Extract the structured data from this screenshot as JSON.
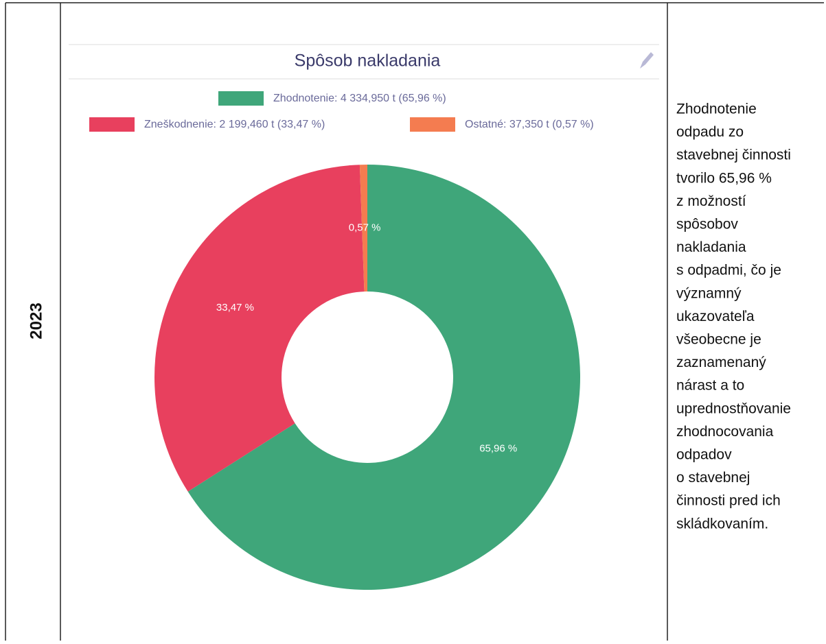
{
  "table": {
    "year": "2023",
    "text_lines": [
      "Zhodnotenie",
      "odpadu zo",
      "stavebnej činnosti",
      "tvorilo  65,96 %",
      "z možností",
      "spôsobov",
      "nakladania",
      "s odpadmi, čo je",
      "významný",
      "ukazovateľa",
      "všeobecne je",
      "zaznamenaný",
      "nárast  a to",
      "uprednostňovanie",
      "zhodnocovania",
      "odpadov",
      "o stavebnej",
      "činnosti pred ich",
      "skládkovaním."
    ]
  },
  "chart_data": {
    "type": "donut",
    "title": "Spôsob nakladania",
    "categories": [
      "Zhodnotenie: 4 334,950 t (65,96 %)",
      "Zneškodnenie: 2 199,460 t (33,47 %)",
      "Ostatné: 37,350 t (0,57 %)"
    ],
    "values": [
      65.96,
      33.47,
      0.57
    ],
    "value_labels": [
      "65,96 %",
      "33,47 %",
      "0,57 %"
    ],
    "colors": [
      "#3fa67a",
      "#e8405e",
      "#f47c50"
    ]
  }
}
